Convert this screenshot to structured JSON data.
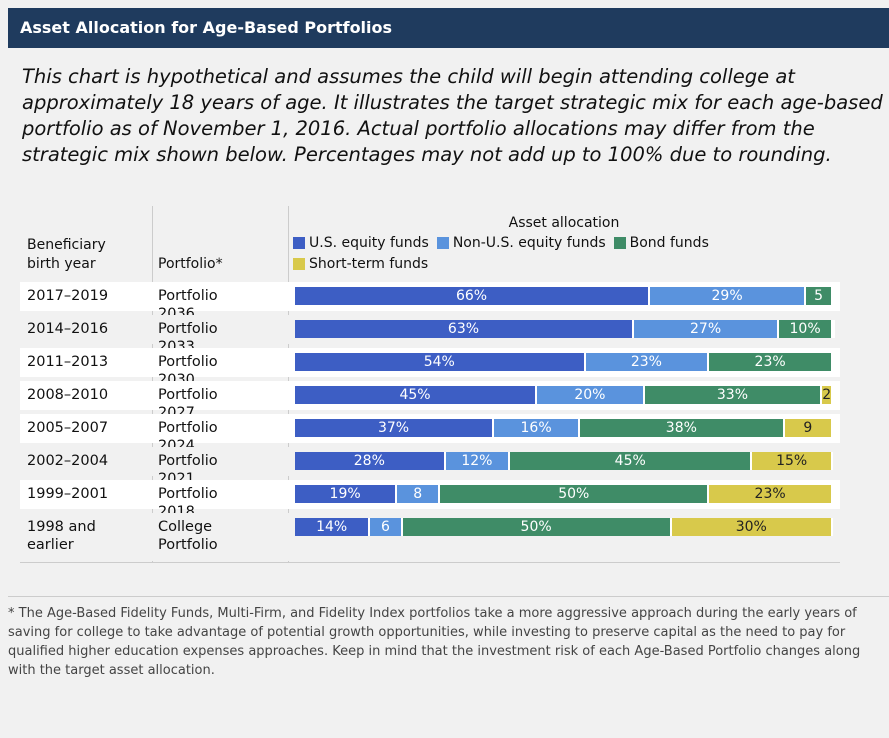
{
  "title": "Asset Allocation for Age-Based Portfolios",
  "intro": "This chart is hypothetical and assumes the child will begin attending college at approximately 18 years of age. It illustrates the target strategic mix for each age-based portfolio as of November 1, 2016. Actual portfolio allocations may differ from the strategic mix shown below. Percentages may not add up to 100% due to rounding.",
  "footnote": "* The Age-Based Fidelity Funds, Multi-Firm, and Fidelity Index portfolios take a more aggressive approach during the early years of saving for college to take advantage of potential growth opportunities, while investing to preserve capital as the need to pay for qualified higher education expenses approaches. Keep in mind that the investment risk of each Age-Based Portfolio changes along with the target asset allocation.",
  "chart_data": {
    "type": "bar",
    "orientation": "horizontal",
    "stacked": true,
    "columns": [
      "Beneficiary birth year",
      "Portfolio*"
    ],
    "legend_title": "Asset allocation",
    "birth_years": [
      "2017–2019",
      "2014–2016",
      "2011–2013",
      "2008–2010",
      "2005–2007",
      "2002–2004",
      "1999–2001",
      "1998 and earlier"
    ],
    "categories": [
      "Portfolio 2036",
      "Portfolio 2033",
      "Portfolio 2030",
      "Portfolio 2027",
      "Portfolio 2024",
      "Portfolio 2021",
      "Portfolio 2018",
      "College Portfolio"
    ],
    "xlim": [
      0,
      100
    ],
    "series": [
      {
        "name": "U.S. equity funds",
        "color": "#3d5ec4",
        "values": [
          66,
          63,
          54,
          45,
          37,
          28,
          19,
          14
        ],
        "value_labels": [
          "66%",
          "63%",
          "54%",
          "45%",
          "37%",
          "28%",
          "19%",
          "14%"
        ]
      },
      {
        "name": "Non-U.S. equity funds",
        "color": "#5a93dd",
        "values": [
          29,
          27,
          23,
          20,
          16,
          12,
          8,
          6
        ],
        "value_labels": [
          "29%",
          "27%",
          "23%",
          "20%",
          "16%",
          "12%",
          "8",
          "6"
        ]
      },
      {
        "name": "Bond funds",
        "color": "#3f8c67",
        "values": [
          5,
          10,
          23,
          33,
          38,
          45,
          50,
          50
        ],
        "value_labels": [
          "5",
          "10%",
          "23%",
          "33%",
          "38%",
          "45%",
          "50%",
          "50%"
        ]
      },
      {
        "name": "Short-term funds",
        "color": "#d8c94b",
        "values": [
          0,
          0,
          0,
          2,
          9,
          15,
          23,
          30
        ],
        "value_labels": [
          null,
          null,
          null,
          "2",
          "9",
          "15%",
          "23%",
          "30%"
        ]
      }
    ]
  }
}
